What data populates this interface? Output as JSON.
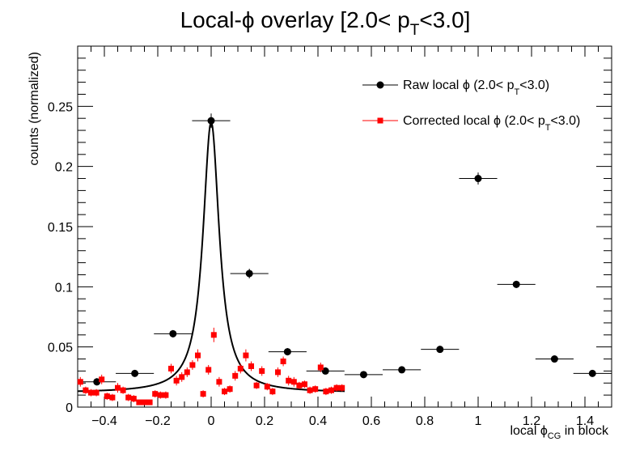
{
  "chart_data": {
    "type": "scatter",
    "title": {
      "pre": "Local-",
      "phi": "ϕ",
      "post": " overlay [2.0< p",
      "sub": "T",
      "end": "<3.0]"
    },
    "xlabel": {
      "pre": "local ",
      "sym": "ϕ",
      "sub": "CG",
      "post": " in block"
    },
    "ylabel": "counts (normalized)",
    "xlim": [
      -0.5,
      1.5
    ],
    "ylim": [
      0,
      0.3
    ],
    "x_ticks": [
      -0.4,
      -0.2,
      0,
      0.2,
      0.4,
      0.6,
      0.8,
      1,
      1.2,
      1.4
    ],
    "x_tick_labels": [
      "−0.4",
      "−0.2",
      "0",
      "0.2",
      "0.4",
      "0.6",
      "0.8",
      "1",
      "1.2",
      "1.4"
    ],
    "y_ticks": [
      0,
      0.05,
      0.1,
      0.15,
      0.2,
      0.25
    ],
    "y_tick_labels": [
      "0",
      "0.05",
      "0.1",
      "0.15",
      "0.2",
      "0.25"
    ],
    "grid": false,
    "legend_position": "top-right",
    "series": [
      {
        "name": {
          "pre": "Raw local ",
          "sym": "ϕ",
          "mid": " (2.0< p",
          "sub": "T",
          "post": "<3.0)"
        },
        "marker": "circle",
        "color": "#000000",
        "xerr": 0.0714,
        "points": [
          {
            "x": -0.428,
            "y": 0.021,
            "yerr": 0.003
          },
          {
            "x": -0.286,
            "y": 0.028,
            "yerr": 0.002
          },
          {
            "x": -0.143,
            "y": 0.061,
            "yerr": 0.003
          },
          {
            "x": 0.0,
            "y": 0.238,
            "yerr": 0.006
          },
          {
            "x": 0.143,
            "y": 0.111,
            "yerr": 0.004
          },
          {
            "x": 0.286,
            "y": 0.046,
            "yerr": 0.003
          },
          {
            "x": 0.428,
            "y": 0.03,
            "yerr": 0.002
          },
          {
            "x": 0.571,
            "y": 0.027,
            "yerr": 0.002
          },
          {
            "x": 0.714,
            "y": 0.031,
            "yerr": 0.002
          },
          {
            "x": 0.857,
            "y": 0.048,
            "yerr": 0.002
          },
          {
            "x": 1.0,
            "y": 0.19,
            "yerr": 0.005
          },
          {
            "x": 1.143,
            "y": 0.102,
            "yerr": 0.003
          },
          {
            "x": 1.286,
            "y": 0.04,
            "yerr": 0.002
          },
          {
            "x": 1.428,
            "y": 0.028,
            "yerr": 0.002
          }
        ]
      },
      {
        "name": {
          "pre": "Corrected local  ",
          "sym": "ϕ",
          "mid": " (2.0< p",
          "sub": "T",
          "post": "<3.0)"
        },
        "marker": "square",
        "color": "#ff0000",
        "points": [
          {
            "x": -0.49,
            "y": 0.021,
            "yerr": 0.004
          },
          {
            "x": -0.47,
            "y": 0.014,
            "yerr": 0.003
          },
          {
            "x": -0.45,
            "y": 0.012,
            "yerr": 0.003
          },
          {
            "x": -0.43,
            "y": 0.012,
            "yerr": 0.003
          },
          {
            "x": -0.41,
            "y": 0.023,
            "yerr": 0.004
          },
          {
            "x": -0.39,
            "y": 0.009,
            "yerr": 0.003
          },
          {
            "x": -0.37,
            "y": 0.008,
            "yerr": 0.003
          },
          {
            "x": -0.35,
            "y": 0.016,
            "yerr": 0.004
          },
          {
            "x": -0.33,
            "y": 0.014,
            "yerr": 0.003
          },
          {
            "x": -0.31,
            "y": 0.008,
            "yerr": 0.003
          },
          {
            "x": -0.29,
            "y": 0.007,
            "yerr": 0.003
          },
          {
            "x": -0.27,
            "y": 0.004,
            "yerr": 0.002
          },
          {
            "x": -0.25,
            "y": 0.004,
            "yerr": 0.002
          },
          {
            "x": -0.23,
            "y": 0.004,
            "yerr": 0.002
          },
          {
            "x": -0.21,
            "y": 0.011,
            "yerr": 0.003
          },
          {
            "x": -0.19,
            "y": 0.01,
            "yerr": 0.003
          },
          {
            "x": -0.17,
            "y": 0.01,
            "yerr": 0.003
          },
          {
            "x": -0.15,
            "y": 0.032,
            "yerr": 0.004
          },
          {
            "x": -0.13,
            "y": 0.022,
            "yerr": 0.004
          },
          {
            "x": -0.11,
            "y": 0.025,
            "yerr": 0.004
          },
          {
            "x": -0.09,
            "y": 0.029,
            "yerr": 0.004
          },
          {
            "x": -0.07,
            "y": 0.035,
            "yerr": 0.004
          },
          {
            "x": -0.05,
            "y": 0.043,
            "yerr": 0.005
          },
          {
            "x": -0.03,
            "y": 0.011,
            "yerr": 0.003
          },
          {
            "x": -0.01,
            "y": 0.031,
            "yerr": 0.004
          },
          {
            "x": 0.01,
            "y": 0.06,
            "yerr": 0.006
          },
          {
            "x": 0.03,
            "y": 0.021,
            "yerr": 0.004
          },
          {
            "x": 0.05,
            "y": 0.013,
            "yerr": 0.003
          },
          {
            "x": 0.07,
            "y": 0.015,
            "yerr": 0.003
          },
          {
            "x": 0.09,
            "y": 0.026,
            "yerr": 0.004
          },
          {
            "x": 0.11,
            "y": 0.032,
            "yerr": 0.004
          },
          {
            "x": 0.13,
            "y": 0.043,
            "yerr": 0.005
          },
          {
            "x": 0.15,
            "y": 0.034,
            "yerr": 0.004
          },
          {
            "x": 0.17,
            "y": 0.018,
            "yerr": 0.003
          },
          {
            "x": 0.19,
            "y": 0.03,
            "yerr": 0.004
          },
          {
            "x": 0.21,
            "y": 0.017,
            "yerr": 0.003
          },
          {
            "x": 0.23,
            "y": 0.013,
            "yerr": 0.003
          },
          {
            "x": 0.25,
            "y": 0.029,
            "yerr": 0.004
          },
          {
            "x": 0.27,
            "y": 0.038,
            "yerr": 0.004
          },
          {
            "x": 0.29,
            "y": 0.022,
            "yerr": 0.004
          },
          {
            "x": 0.31,
            "y": 0.021,
            "yerr": 0.004
          },
          {
            "x": 0.33,
            "y": 0.018,
            "yerr": 0.003
          },
          {
            "x": 0.35,
            "y": 0.019,
            "yerr": 0.003
          },
          {
            "x": 0.37,
            "y": 0.014,
            "yerr": 0.003
          },
          {
            "x": 0.39,
            "y": 0.015,
            "yerr": 0.003
          },
          {
            "x": 0.41,
            "y": 0.033,
            "yerr": 0.004
          },
          {
            "x": 0.43,
            "y": 0.013,
            "yerr": 0.003
          },
          {
            "x": 0.45,
            "y": 0.014,
            "yerr": 0.003
          },
          {
            "x": 0.47,
            "y": 0.016,
            "yerr": 0.003
          },
          {
            "x": 0.49,
            "y": 0.016,
            "yerr": 0.003
          }
        ]
      }
    ],
    "fit_curve": {
      "type": "lorentzian",
      "color": "#000000",
      "x_range": [
        -0.5,
        0.5
      ],
      "center": 0.0,
      "gamma": 0.037,
      "peak_height": 0.237,
      "baseline": 0.012
    }
  }
}
